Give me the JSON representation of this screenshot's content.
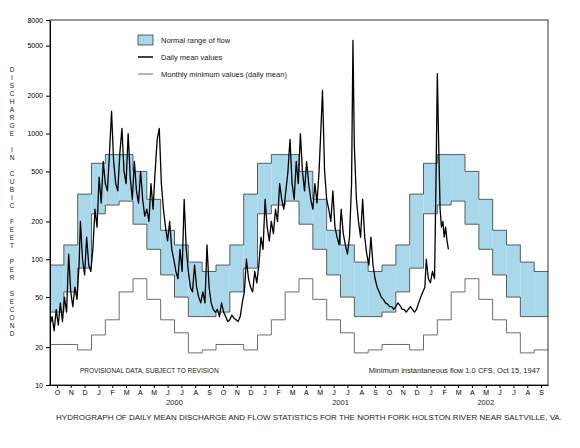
{
  "chart_data": {
    "type": "line",
    "title": "HYDROGRAPH OF DAILY MEAN DISCHARGE AND FLOW STATISTICS FOR THE NORTH FORK HOLSTON RIVER NEAR SALTVILLE, VA.",
    "y_label": "DISCHARGE IN CUBIC FEET PER SECOND",
    "log": "y",
    "grid": false,
    "legend": "upper left",
    "xlim": [
      0,
      36
    ],
    "xticks": [
      {
        "value": 0.5,
        "label": "O"
      },
      {
        "value": 1.5,
        "label": "N"
      },
      {
        "value": 2.5,
        "label": "D"
      },
      {
        "value": 3.5,
        "label": "J"
      },
      {
        "value": 4.5,
        "label": "F"
      },
      {
        "value": 5.5,
        "label": "M"
      },
      {
        "value": 6.5,
        "label": "A"
      },
      {
        "value": 7.5,
        "label": "M"
      },
      {
        "value": 8.5,
        "label": "J"
      },
      {
        "value": 9.5,
        "label": "J"
      },
      {
        "value": 10.5,
        "label": "A"
      },
      {
        "value": 11.5,
        "label": "S"
      },
      {
        "value": 12.5,
        "label": "O"
      },
      {
        "value": 13.5,
        "label": "N"
      },
      {
        "value": 14.5,
        "label": "D"
      },
      {
        "value": 15.5,
        "label": "J"
      },
      {
        "value": 16.5,
        "label": "F"
      },
      {
        "value": 17.5,
        "label": "M"
      },
      {
        "value": 18.5,
        "label": "A"
      },
      {
        "value": 19.5,
        "label": "M"
      },
      {
        "value": 20.5,
        "label": "J"
      },
      {
        "value": 21.5,
        "label": "J"
      },
      {
        "value": 22.5,
        "label": "A"
      },
      {
        "value": 23.5,
        "label": "S"
      },
      {
        "value": 24.5,
        "label": "O"
      },
      {
        "value": 25.5,
        "label": "N"
      },
      {
        "value": 26.5,
        "label": "D"
      },
      {
        "value": 27.5,
        "label": "J"
      },
      {
        "value": 28.5,
        "label": "F"
      },
      {
        "value": 29.5,
        "label": "M"
      },
      {
        "value": 30.5,
        "label": "A"
      },
      {
        "value": 31.5,
        "label": "M"
      },
      {
        "value": 32.5,
        "label": "J"
      },
      {
        "value": 33.5,
        "label": "J"
      },
      {
        "value": 34.5,
        "label": "A"
      },
      {
        "value": 35.5,
        "label": "S"
      }
    ],
    "ylim": [
      10,
      8000
    ],
    "yticks": [
      10,
      20,
      50,
      100,
      200,
      500,
      1000,
      2000,
      5000,
      8000
    ],
    "annotations": [
      {
        "text": "2000",
        "x": 9
      },
      {
        "text": "2001",
        "x": 21
      },
      {
        "text": "2002",
        "x": 31.5
      },
      {
        "text": "PROVISIONAL DATA, SUBJECT TO REVISION"
      },
      {
        "text": "Minimum instantaneous flow 1.0 CFS, Oct 15, 1947"
      }
    ],
    "series": [
      {
        "name": "Normal range of flow",
        "type": "area",
        "color": "#a9d8ea",
        "x": [
          0,
          1,
          2,
          3,
          4,
          5,
          6,
          7,
          8,
          9,
          10,
          11,
          12,
          13,
          14,
          15,
          16,
          17,
          18,
          19,
          20,
          21,
          22,
          23,
          24,
          25,
          26,
          27,
          28,
          29,
          30,
          31,
          32,
          33,
          34,
          35
        ],
        "upper": [
          90,
          130,
          330,
          580,
          680,
          680,
          500,
          300,
          170,
          130,
          95,
          80,
          90,
          130,
          330,
          580,
          680,
          680,
          500,
          300,
          170,
          130,
          95,
          80,
          90,
          130,
          330,
          580,
          680,
          680,
          500,
          300,
          170,
          130,
          95,
          80
        ],
        "lower": [
          38,
          55,
          85,
          230,
          270,
          290,
          190,
          120,
          75,
          50,
          35,
          35,
          38,
          55,
          85,
          230,
          270,
          290,
          190,
          120,
          75,
          50,
          35,
          35,
          38,
          55,
          85,
          230,
          270,
          290,
          190,
          120,
          75,
          50,
          35,
          35
        ]
      },
      {
        "name": "Daily mean values",
        "type": "line",
        "color": "#000000",
        "x": [
          0,
          0.15,
          0.3,
          0.45,
          0.6,
          0.75,
          0.9,
          1.05,
          1.2,
          1.35,
          1.5,
          1.65,
          1.8,
          1.95,
          2.1,
          2.2,
          2.35,
          2.5,
          2.65,
          2.8,
          2.95,
          3.1,
          3.25,
          3.4,
          3.55,
          3.7,
          3.85,
          4.0,
          4.15,
          4.3,
          4.45,
          4.6,
          4.75,
          4.9,
          5.05,
          5.2,
          5.35,
          5.5,
          5.65,
          5.8,
          5.95,
          6.1,
          6.25,
          6.4,
          6.55,
          6.7,
          6.85,
          7.0,
          7.15,
          7.3,
          7.45,
          7.6,
          7.75,
          7.9,
          8.05,
          8.2,
          8.35,
          8.5,
          8.65,
          8.8,
          8.95,
          9.1,
          9.25,
          9.4,
          9.55,
          9.7,
          9.85,
          10.0,
          10.15,
          10.3,
          10.45,
          10.6,
          10.75,
          10.9,
          11.05,
          11.2,
          11.35,
          11.5,
          11.65,
          11.8,
          11.95,
          12.1,
          12.25,
          12.4,
          12.55,
          12.7,
          12.85,
          13.0,
          13.15,
          13.3,
          13.45,
          13.6,
          13.75,
          13.9,
          14.05,
          14.2,
          14.35,
          14.5,
          14.65,
          14.8,
          14.95,
          15.1,
          15.25,
          15.4,
          15.55,
          15.7,
          15.85,
          16.0,
          16.15,
          16.3,
          16.45,
          16.6,
          16.75,
          16.9,
          17.05,
          17.2,
          17.35,
          17.5,
          17.65,
          17.8,
          17.95,
          18.1,
          18.25,
          18.4,
          18.55,
          18.7,
          18.85,
          19.0,
          19.15,
          19.3,
          19.45,
          19.6,
          19.7,
          19.85,
          20.0,
          20.15,
          20.3,
          20.45,
          20.6,
          20.75,
          20.9,
          21.05,
          21.2,
          21.35,
          21.5,
          21.65,
          21.8,
          21.9,
          22.0,
          22.15,
          22.3,
          22.45,
          22.6,
          22.75,
          22.9,
          23.05,
          23.2,
          23.35,
          23.5,
          23.65,
          23.8,
          23.95,
          24.1,
          24.25,
          24.4,
          24.55,
          24.7,
          24.85,
          25.0,
          25.15,
          25.3,
          25.45,
          25.6,
          25.75,
          25.9,
          26.05,
          26.2,
          26.35,
          26.5,
          26.65,
          26.8,
          26.95,
          27.1,
          27.2,
          27.35,
          27.5,
          27.65,
          27.8,
          27.9,
          28.0,
          28.1,
          28.2,
          28.3,
          28.4,
          28.5,
          28.6,
          28.7,
          28.8
        ],
        "values": [
          30,
          35,
          27,
          40,
          30,
          45,
          32,
          50,
          38,
          110,
          55,
          42,
          60,
          48,
          90,
          200,
          100,
          75,
          150,
          90,
          80,
          120,
          250,
          180,
          450,
          280,
          600,
          400,
          350,
          700,
          1500,
          600,
          400,
          350,
          700,
          1100,
          500,
          400,
          1000,
          450,
          300,
          600,
          350,
          280,
          500,
          300,
          220,
          250,
          200,
          400,
          250,
          500,
          900,
          1100,
          400,
          250,
          180,
          140,
          200,
          120,
          100,
          80,
          70,
          120,
          80,
          300,
          120,
          80,
          60,
          55,
          90,
          60,
          50,
          45,
          55,
          45,
          130,
          60,
          45,
          40,
          38,
          40,
          35,
          45,
          38,
          35,
          32,
          33,
          36,
          34,
          33,
          32,
          35,
          45,
          55,
          100,
          70,
          60,
          55,
          80,
          65,
          90,
          150,
          120,
          300,
          180,
          140,
          200,
          160,
          250,
          200,
          400,
          300,
          250,
          350,
          500,
          900,
          400,
          300,
          600,
          400,
          1000,
          500,
          350,
          600,
          400,
          300,
          250,
          400,
          280,
          500,
          1200,
          2200,
          500,
          300,
          250,
          200,
          350,
          180,
          150,
          130,
          250,
          160,
          130,
          110,
          150,
          400,
          5500,
          800,
          300,
          200,
          150,
          300,
          150,
          110,
          90,
          150,
          90,
          70,
          60,
          55,
          50,
          48,
          45,
          44,
          42,
          42,
          40,
          42,
          45,
          43,
          40,
          40,
          38,
          40,
          42,
          40,
          38,
          40,
          45,
          50,
          55,
          60,
          100,
          70,
          65,
          80,
          70,
          400,
          3000,
          800,
          250,
          180,
          200,
          150,
          180,
          140,
          120
        ]
      },
      {
        "name": "Monthly minimum values (daily mean)",
        "type": "step",
        "color": "#4a4a4a",
        "x": [
          0,
          1,
          2,
          3,
          4,
          5,
          6,
          7,
          8,
          9,
          10,
          11,
          12,
          13,
          14,
          15,
          16,
          17,
          18,
          19,
          20,
          21,
          22,
          23,
          24,
          25,
          26,
          27,
          28,
          29,
          30,
          31,
          32,
          33,
          34,
          35
        ],
        "values": [
          21,
          21,
          19,
          25,
          33,
          55,
          70,
          48,
          33,
          26,
          18,
          19,
          21,
          21,
          19,
          25,
          33,
          55,
          70,
          48,
          33,
          26,
          18,
          19,
          21,
          21,
          19,
          25,
          33,
          55,
          70,
          48,
          33,
          26,
          18,
          19
        ]
      }
    ]
  }
}
